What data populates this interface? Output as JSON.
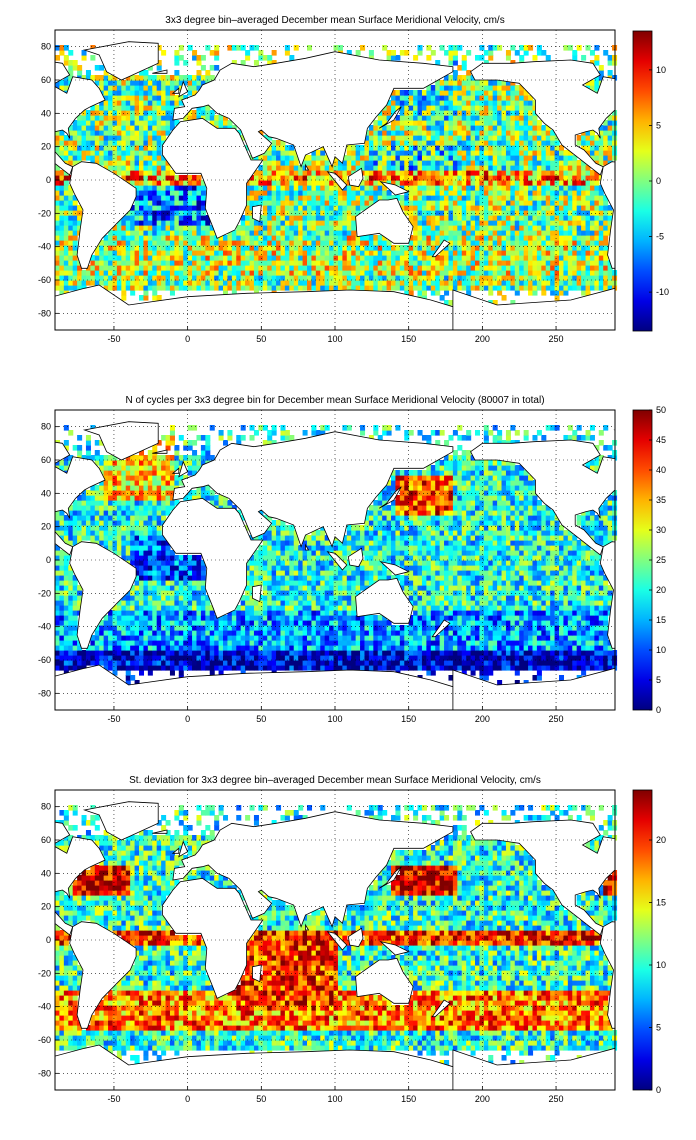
{
  "chart_data": [
    {
      "type": "heatmap",
      "title": "3x3 degree bin–averaged December mean Surface Meridional Velocity, cm/s",
      "xlim": [
        -90,
        290
      ],
      "ylim": [
        -90,
        90
      ],
      "x_ticks": [
        -50,
        0,
        50,
        100,
        150,
        200,
        250
      ],
      "y_ticks": [
        80,
        60,
        40,
        20,
        0,
        -20,
        -40,
        -60,
        -80
      ],
      "colorbar": {
        "min": -13.5,
        "max": 13.5,
        "ticks": [
          10,
          5,
          0,
          -5,
          -10
        ]
      },
      "colormap": "jet",
      "grid": true,
      "field": "velocity"
    },
    {
      "type": "heatmap",
      "title": "N of cycles per 3x3 degree bin for December mean Surface Meridional Velocity (80007 in total)",
      "xlim": [
        -90,
        290
      ],
      "ylim": [
        -90,
        90
      ],
      "x_ticks": [
        -50,
        0,
        50,
        100,
        150,
        200,
        250
      ],
      "y_ticks": [
        80,
        60,
        40,
        20,
        0,
        -20,
        -40,
        -60,
        -80
      ],
      "colorbar": {
        "min": 0,
        "max": 50,
        "ticks": [
          50,
          45,
          40,
          35,
          30,
          25,
          20,
          15,
          10,
          5,
          0
        ]
      },
      "colormap": "jet",
      "grid": true,
      "field": "count"
    },
    {
      "type": "heatmap",
      "title": "St. deviation for 3x3 degree bin–averaged December mean Surface Meridional Velocity, cm/s",
      "xlim": [
        -90,
        290
      ],
      "ylim": [
        -90,
        90
      ],
      "x_ticks": [
        -50,
        0,
        50,
        100,
        150,
        200,
        250
      ],
      "y_ticks": [
        80,
        60,
        40,
        20,
        0,
        -20,
        -40,
        -60,
        -80
      ],
      "colorbar": {
        "min": 0,
        "max": 24,
        "ticks": [
          20,
          15,
          10,
          5,
          0
        ]
      },
      "colormap": "jet",
      "grid": true,
      "field": "stdev"
    }
  ]
}
